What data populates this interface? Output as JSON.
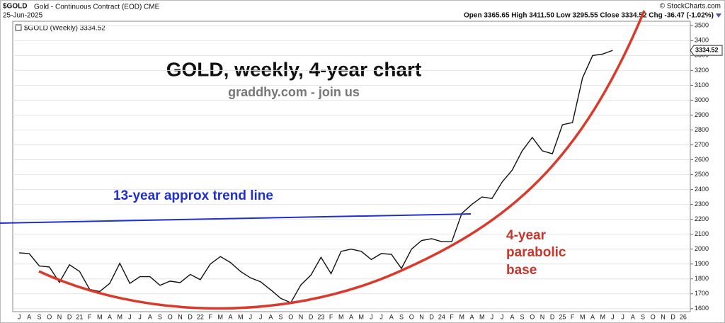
{
  "header": {
    "symbol": "$GOLD",
    "description": "Gold - Continuous Contract (EOD) CME",
    "date": "25-Jun-2025",
    "source": "© StockCharts.com",
    "quote": "Open 3365.65 High 3411.50 Low 3295.55 Close 3334.52 Chg -36.47 (-1.02%)"
  },
  "chart_data": {
    "type": "line",
    "title": "GOLD, weekly, 4-year chart",
    "subtitle": "graddhy.com - join us",
    "legend_label": "$GOLD (Weekly) 3334.52",
    "annotations": {
      "trend_line": "13-year approx trend line",
      "base_1": "4-year",
      "base_2": "parabolic",
      "base_3": "base"
    },
    "categories": [
      "J",
      "A",
      "S",
      "O",
      "N",
      "D",
      "21",
      "F",
      "M",
      "A",
      "M",
      "J",
      "J",
      "A",
      "S",
      "O",
      "N",
      "D",
      "22",
      "F",
      "M",
      "A",
      "M",
      "J",
      "J",
      "A",
      "S",
      "O",
      "N",
      "D",
      "23",
      "F",
      "M",
      "A",
      "M",
      "J",
      "J",
      "A",
      "S",
      "O",
      "N",
      "D",
      "24",
      "F",
      "M",
      "A",
      "M",
      "J",
      "J",
      "A",
      "S",
      "O",
      "N",
      "D",
      "25",
      "F",
      "M",
      "A",
      "M",
      "J",
      "J",
      "A",
      "S",
      "O",
      "N",
      "D",
      "26"
    ],
    "series": [
      {
        "name": "$GOLD",
        "color": "#111111",
        "values": [
          1975,
          1970,
          1887,
          1880,
          1777,
          1895,
          1850,
          1730,
          1715,
          1770,
          1905,
          1770,
          1815,
          1815,
          1757,
          1785,
          1775,
          1830,
          1795,
          1900,
          1950,
          1910,
          1850,
          1807,
          1780,
          1727,
          1670,
          1640,
          1760,
          1826,
          1945,
          1835,
          1985,
          2000,
          1985,
          1930,
          1970,
          1965,
          1870,
          2000,
          2058,
          2070,
          2050,
          2050,
          2240,
          2300,
          2350,
          2340,
          2450,
          2530,
          2660,
          2750,
          2660,
          2640,
          2835,
          2850,
          3150,
          3300,
          3310,
          3334.52,
          null,
          null,
          null,
          null,
          null,
          null,
          null
        ]
      }
    ],
    "ylim": [
      1580,
      3530
    ],
    "yticks": [
      1600,
      1700,
      1800,
      1900,
      2000,
      2100,
      2200,
      2300,
      2400,
      2500,
      2600,
      2700,
      2800,
      2900,
      3000,
      3100,
      3200,
      3300,
      3400,
      3500
    ],
    "grid": true
  }
}
